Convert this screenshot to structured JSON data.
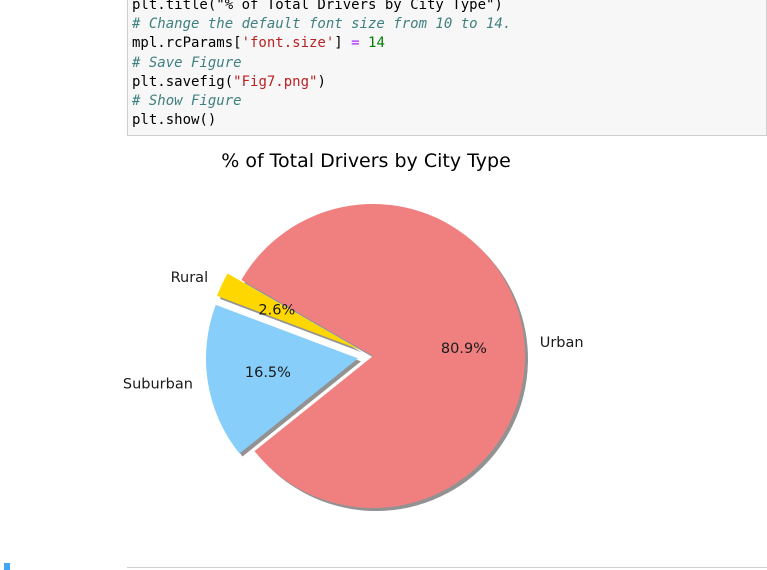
{
  "code_cell": {
    "lines": [
      [
        {
          "t": "plt.title(\"% of Total Drivers by City Type\")",
          "c": "plain"
        }
      ],
      [
        {
          "t": "# Change the default font size from 10 to 14.",
          "c": "comment"
        }
      ],
      [
        {
          "t": "mpl.rcParams[",
          "c": "plain"
        },
        {
          "t": "'font.size'",
          "c": "string"
        },
        {
          "t": "] ",
          "c": "plain"
        },
        {
          "t": "=",
          "c": "op"
        },
        {
          "t": " ",
          "c": "plain"
        },
        {
          "t": "14",
          "c": "num"
        }
      ],
      [
        {
          "t": "# Save Figure",
          "c": "comment"
        }
      ],
      [
        {
          "t": "plt.savefig(",
          "c": "plain"
        },
        {
          "t": "\"Fig7.png\"",
          "c": "string"
        },
        {
          "t": ")",
          "c": "plain"
        }
      ],
      [
        {
          "t": "# Show Figure",
          "c": "comment"
        }
      ],
      [
        {
          "t": "plt.show()",
          "c": "plain"
        }
      ]
    ]
  },
  "chart_data": {
    "type": "pie",
    "title": "% of Total Drivers by City Type",
    "start_angle_deg": 150,
    "slices": [
      {
        "label": "Rural",
        "value": 2.6,
        "pct_label": "2.6%",
        "color": "#ffd700",
        "explode": 0.1
      },
      {
        "label": "Suburban",
        "value": 16.5,
        "pct_label": "16.5%",
        "color": "#87cefa",
        "explode": 0.1
      },
      {
        "label": "Urban",
        "value": 80.9,
        "pct_label": "80.9%",
        "color": "#f08080",
        "explode": 0.0
      }
    ],
    "shadow": true
  }
}
